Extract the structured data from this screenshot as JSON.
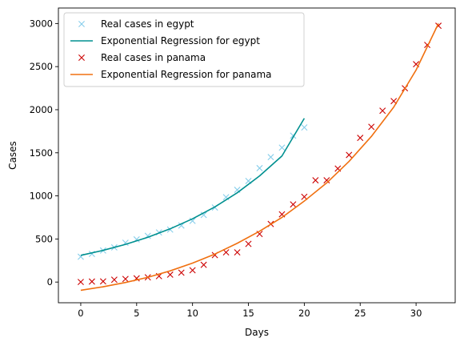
{
  "chart_data": {
    "type": "scatter",
    "xlabel": "Days",
    "ylabel": "Cases",
    "xlim": [
      -2,
      33.5
    ],
    "ylim": [
      -240,
      3180
    ],
    "x_ticks": [
      0,
      5,
      10,
      15,
      20,
      25,
      30
    ],
    "y_ticks": [
      0,
      500,
      1000,
      1500,
      2000,
      2500,
      3000
    ],
    "x_tick_labels": [
      "0",
      "5",
      "10",
      "15",
      "20",
      "25",
      "30"
    ],
    "y_tick_labels": [
      "0",
      "500",
      "1000",
      "1500",
      "2000",
      "2500",
      "3000"
    ],
    "grid": false,
    "legend": "top-left",
    "series": [
      {
        "name": "Real cases in egypt",
        "kind": "markers",
        "color": "#87ceeb",
        "x": [
          0,
          1,
          2,
          3,
          4,
          5,
          6,
          7,
          8,
          9,
          10,
          11,
          12,
          13,
          14,
          15,
          16,
          17,
          18,
          19,
          20
        ],
        "y": [
          294,
          327,
          366,
          402,
          456,
          495,
          536,
          576,
          609,
          656,
          710,
          779,
          865,
          985,
          1070,
          1173,
          1322,
          1450,
          1560,
          1699,
          1794
        ]
      },
      {
        "name": "Exponential Regression for egypt",
        "kind": "line",
        "color": "#009090",
        "x": [
          0,
          2,
          4,
          6,
          8,
          10,
          12,
          14,
          16,
          18,
          20
        ],
        "y": [
          310,
          368,
          437,
          520,
          618,
          734,
          872,
          1036,
          1232,
          1463,
          1900
        ]
      },
      {
        "name": "Real cases in panama",
        "kind": "markers",
        "color": "#cc0000",
        "x": [
          0,
          1,
          2,
          3,
          4,
          5,
          6,
          7,
          8,
          9,
          10,
          11,
          12,
          13,
          14,
          15,
          16,
          17,
          18,
          19,
          20,
          21,
          22,
          23,
          24,
          25,
          26,
          27,
          28,
          29,
          30,
          31,
          32
        ],
        "y": [
          1,
          6,
          8,
          27,
          36,
          43,
          55,
          69,
          86,
          109,
          137,
          200,
          313,
          345,
          345,
          443,
          558,
          674,
          786,
          901,
          989,
          1181,
          1181,
          1317,
          1475,
          1673,
          1801,
          1988,
          2100,
          2249,
          2528,
          2752,
          2974
        ]
      },
      {
        "name": "Exponential Regression for panama",
        "kind": "line",
        "color": "#f07010",
        "x": [
          0,
          2,
          4,
          6,
          8,
          10,
          12,
          14,
          16,
          18,
          20,
          22,
          24,
          26,
          28,
          30,
          32
        ],
        "y": [
          -95,
          -55,
          -5,
          55,
          130,
          220,
          325,
          450,
          590,
          750,
          940,
          1150,
          1400,
          1690,
          2030,
          2460,
          3000
        ]
      }
    ]
  }
}
